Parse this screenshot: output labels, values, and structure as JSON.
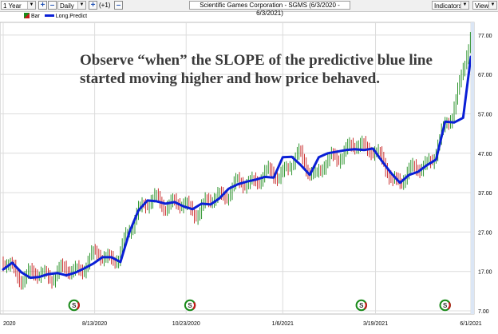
{
  "toolbar": {
    "period": "1 Year",
    "interval": "Daily",
    "offset": "(+1)",
    "title": "Scientific Games Corporation - SGMS (6/3/2020 - 6/3/2021)",
    "indicators_label": "Indicators",
    "views_label": "Views"
  },
  "legend": {
    "bar_label": "Bar",
    "line_label": "Long.Predict"
  },
  "annotation": {
    "line1": "Observe “when” the SLOPE of the predictive blue line",
    "line2": "started moving higher and how price behaved."
  },
  "colors": {
    "predict_line": "#0a1fd6",
    "bar_green": "#1a8a1a",
    "bar_red": "#c41a1a",
    "grid": "#dcdcdc"
  },
  "chart_data": {
    "type": "line",
    "title": "Scientific Games Corporation - SGMS (6/3/2020 - 6/3/2021)",
    "xlabel": "",
    "ylabel": "",
    "x_ticks": [
      "2020",
      "8/13/2020",
      "10/23/2020",
      "1/6/2021",
      "3/19/2021",
      "6/1/2021"
    ],
    "y_ticks": [
      7.0,
      17.0,
      27.0,
      37.0,
      47.0,
      57.0,
      67.0,
      77.0
    ],
    "ylim": [
      7,
      79
    ],
    "grid": true,
    "legend": "top-left",
    "series": [
      {
        "name": "Long.Predict",
        "x": [
          "2020-06-03",
          "2020-06-10",
          "2020-06-17",
          "2020-06-24",
          "2020-07-01",
          "2020-07-08",
          "2020-07-15",
          "2020-07-22",
          "2020-07-29",
          "2020-08-05",
          "2020-08-12",
          "2020-08-19",
          "2020-08-26",
          "2020-09-02",
          "2020-09-09",
          "2020-09-16",
          "2020-09-23",
          "2020-09-30",
          "2020-10-07",
          "2020-10-14",
          "2020-10-21",
          "2020-10-28",
          "2020-11-04",
          "2020-11-11",
          "2020-11-18",
          "2020-11-25",
          "2020-12-02",
          "2020-12-09",
          "2020-12-16",
          "2020-12-23",
          "2020-12-30",
          "2021-01-06",
          "2021-01-13",
          "2021-01-20",
          "2021-01-27",
          "2021-02-03",
          "2021-02-10",
          "2021-02-17",
          "2021-02-24",
          "2021-03-03",
          "2021-03-10",
          "2021-03-17",
          "2021-03-24",
          "2021-03-31",
          "2021-04-07",
          "2021-04-14",
          "2021-04-21",
          "2021-04-28",
          "2021-05-05",
          "2021-05-12",
          "2021-05-19",
          "2021-05-26",
          "2021-06-01"
        ],
        "y": [
          17.5,
          19.2,
          16.8,
          15.4,
          15.6,
          16.3,
          16.6,
          16.0,
          16.7,
          17.8,
          19.0,
          20.6,
          20.6,
          19.4,
          27.0,
          32.5,
          35.0,
          34.8,
          34.2,
          34.6,
          33.5,
          32.8,
          34.2,
          34.0,
          35.6,
          38.0,
          39.1,
          39.8,
          40.3,
          41.0,
          40.8,
          46.0,
          46.1,
          44.0,
          41.5,
          46.0,
          47.0,
          47.4,
          47.8,
          48.0,
          47.8,
          48.2,
          45.0,
          42.0,
          39.5,
          41.5,
          42.3,
          44.0,
          45.4,
          55.0,
          54.8,
          56.0,
          71.5
        ]
      }
    ],
    "price_bars": {
      "x": [
        "2020-06-03",
        "2020-06-17",
        "2020-07-01",
        "2020-07-15",
        "2020-08-03",
        "2020-08-17",
        "2020-09-01",
        "2020-09-15",
        "2020-10-01",
        "2020-10-15",
        "2020-11-02",
        "2020-11-16",
        "2020-12-01",
        "2020-12-15",
        "2021-01-04",
        "2021-01-19",
        "2021-02-01",
        "2021-02-16",
        "2021-03-01",
        "2021-03-16",
        "2021-04-01",
        "2021-04-16",
        "2021-05-03",
        "2021-05-17",
        "2021-06-01"
      ],
      "close": [
        19.0,
        16.0,
        16.0,
        16.5,
        18.0,
        21.5,
        20.0,
        33.0,
        35.0,
        34.0,
        32.5,
        36.0,
        38.5,
        40.5,
        42.0,
        46.0,
        41.5,
        46.5,
        48.5,
        49.0,
        40.0,
        42.0,
        46.0,
        57.0,
        76.0
      ]
    },
    "signal_markers": [
      {
        "x": "2020-07-28",
        "label": "S"
      },
      {
        "x": "2020-10-26",
        "label": "S"
      },
      {
        "x": "2021-03-08",
        "label": "S"
      },
      {
        "x": "2021-05-12",
        "label": "S"
      }
    ]
  }
}
